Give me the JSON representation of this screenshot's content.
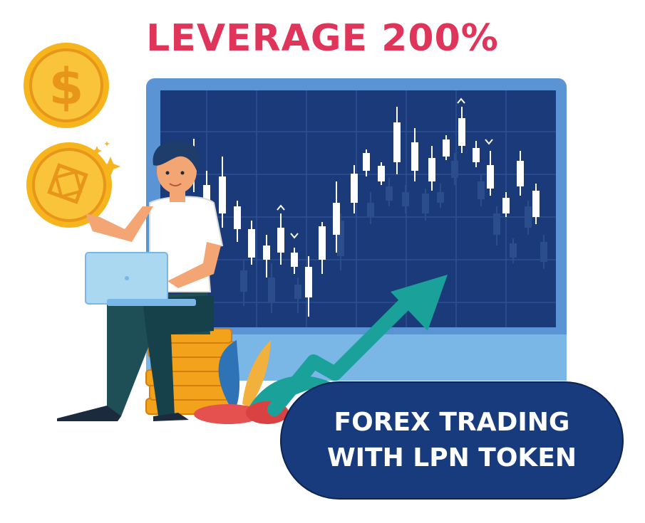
{
  "headline": "LEVERAGE 200%",
  "badge": {
    "line1": "FOREX TRADING",
    "line2": "WITH LPN TOKEN"
  },
  "colors": {
    "headline": "#e0355a",
    "monitor_frame": "#5b94d4",
    "monitor_screen": "#1b3a7a",
    "candle": "#ffffff",
    "arrow": "#1aa29a",
    "coin": "#f6b41d",
    "badge_bg": "#173b7c"
  },
  "icons": [
    "dollar-coin-icon",
    "token-coin-icon",
    "sparkle-icon",
    "trend-up-arrow-icon",
    "laptop-icon"
  ]
}
